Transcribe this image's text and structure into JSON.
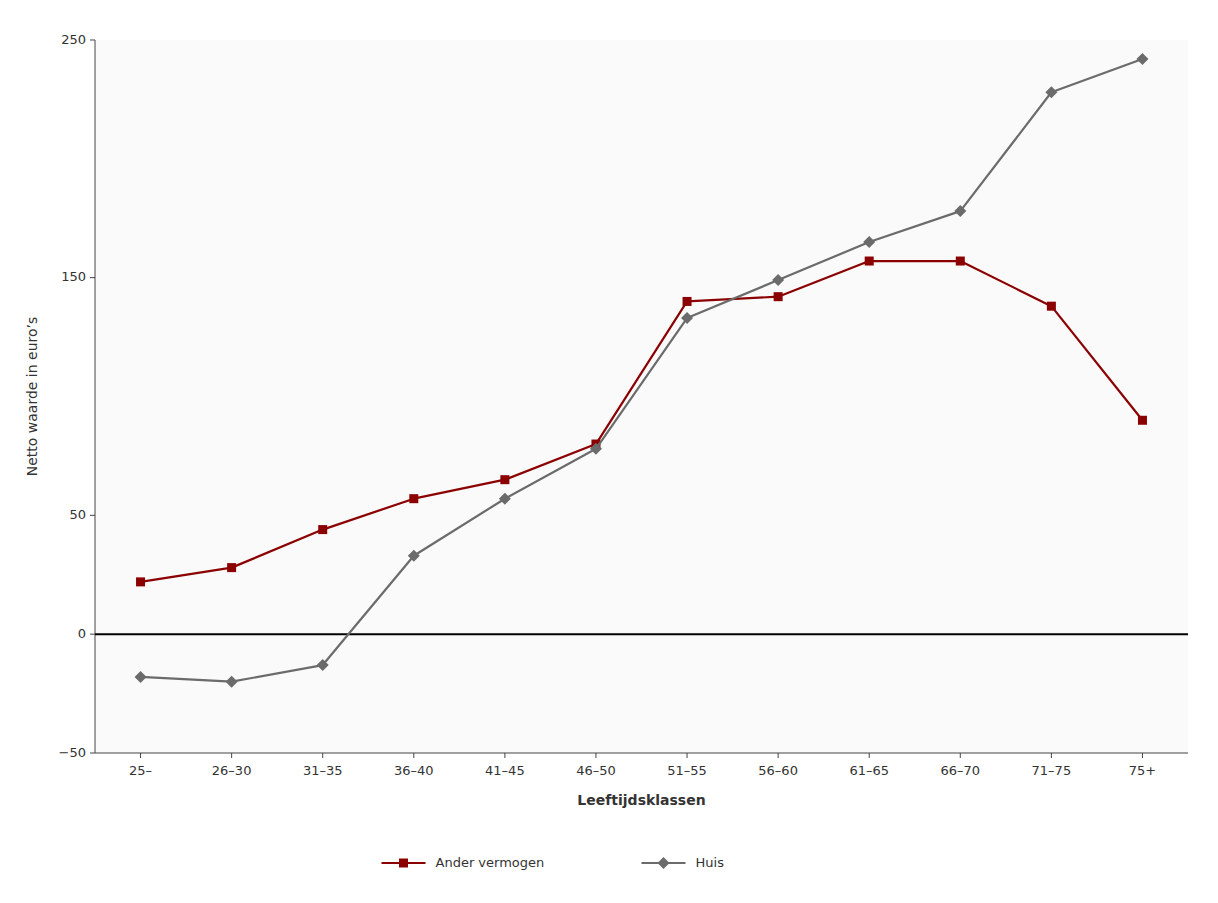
{
  "chart_data": {
    "type": "line",
    "xlabel": "Leeftijdsklassen",
    "ylabel": "Netto waarde in euro’s",
    "categories": [
      "25–",
      "26–30",
      "31–35",
      "36–40",
      "41–45",
      "46–50",
      "51–55",
      "56–60",
      "61–65",
      "66–70",
      "71–75",
      "75+"
    ],
    "series": [
      {
        "name": "Ander vermogen",
        "color": "#8B0000",
        "marker": "square",
        "values": [
          22,
          28,
          44,
          57,
          65,
          80,
          140,
          142,
          157,
          157,
          138,
          90
        ]
      },
      {
        "name": "Huis",
        "color": "#6B6B6B",
        "marker": "diamond",
        "values": [
          -18,
          -20,
          -13,
          33,
          57,
          78,
          133,
          149,
          165,
          178,
          228,
          242
        ]
      }
    ],
    "ylim": [
      -50,
      250
    ],
    "yticks": [
      {
        "value": -50,
        "label": "−50"
      },
      0,
      50,
      150,
      250
    ],
    "grid": false,
    "legend": "bottom"
  }
}
